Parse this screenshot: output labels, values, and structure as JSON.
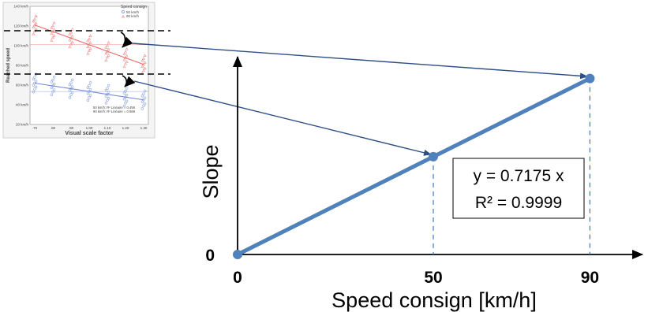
{
  "chart_data": [
    {
      "type": "scatter",
      "title": "",
      "xlabel": "Visual scale factor",
      "ylabel": "Reached speed",
      "xlim": [
        0.7,
        1.3
      ],
      "ylim": [
        20,
        140
      ],
      "xticks": [
        ".70",
        ".80",
        ".90",
        "1.00",
        "1.10",
        "1.20",
        "1.30"
      ],
      "yticks": [
        "20 km/h",
        "40 km/h",
        "60 km/h",
        "80 km/h",
        "100 km/h",
        "120 km/h",
        "140 km/h"
      ],
      "legend": {
        "title": "Speed consign",
        "placement": "top-right",
        "entries": [
          "50 km/h",
          "90 km/h"
        ]
      },
      "annotation_lines": [
        "50 km/h: R² Linéaire = 0.456",
        "90 km/h: R² Linéaire = 0.588"
      ],
      "series": [
        {
          "name": "50 km/h",
          "color": "#8fa6e0",
          "fit": {
            "x": [
              0.7,
              1.3
            ],
            "y": [
              62,
              45
            ]
          }
        },
        {
          "name": "90 km/h",
          "color": "#f08a8a",
          "fit": {
            "x": [
              0.7,
              1.3
            ],
            "y": [
              121,
              81
            ]
          }
        }
      ]
    },
    {
      "type": "line",
      "title": "",
      "xlabel": "Speed consign [km/h]",
      "ylabel": "Slope",
      "x_tick_labels": [
        "0",
        "50",
        "90"
      ],
      "y_tick_labels": [
        "0"
      ],
      "xlim": [
        0,
        115
      ],
      "ylim": [
        0,
        72
      ],
      "series": [
        {
          "color": "#4f81bd",
          "x": [
            0,
            50,
            90
          ],
          "y": [
            0,
            35.875,
            64.575
          ]
        }
      ],
      "equation_box": {
        "line1": "y = 0.7175 x",
        "line2": "R² = 0.9999"
      }
    }
  ]
}
